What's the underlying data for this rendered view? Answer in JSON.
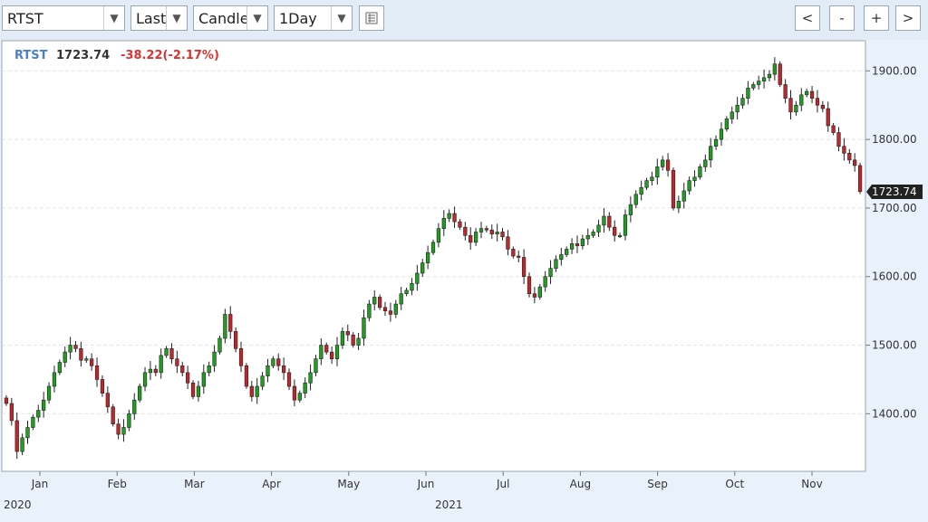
{
  "toolbar": {
    "symbol": "RTST",
    "price_type": "Last",
    "chart_style": "Candle",
    "interval": "1Day",
    "dropdown_arrow": "▼",
    "nav_prev": "<",
    "zoom_out": "-",
    "zoom_in": "+",
    "nav_next": ">"
  },
  "legend": {
    "symbol": "RTST",
    "last": "1723.74",
    "change": "-38.22(-2.17%)"
  },
  "colors": {
    "up": "#1f9e1f",
    "down": "#c0262b",
    "symbol": "#4a7fd0",
    "change": "#e03030"
  },
  "chart_data": {
    "type": "candlestick",
    "ylim": [
      1320,
      1940
    ],
    "y_ticks": [
      1400,
      1500,
      1600,
      1700,
      1800,
      1900
    ],
    "y_tick_labels": [
      "1400.00",
      "1500.00",
      "1600.00",
      "1700.00",
      "1800.00",
      "1900.00"
    ],
    "last_price_label": "1723.74",
    "last_price": 1723.74,
    "months": [
      "Jan",
      "Feb",
      "Mar",
      "Apr",
      "May",
      "Jun",
      "Jul",
      "Aug",
      "Sep",
      "Oct",
      "Nov"
    ],
    "years": [
      "2020",
      "2021"
    ],
    "grid": true,
    "closes": [
      1415,
      1390,
      1345,
      1365,
      1380,
      1395,
      1405,
      1420,
      1440,
      1460,
      1475,
      1490,
      1500,
      1495,
      1478,
      1480,
      1470,
      1450,
      1430,
      1410,
      1385,
      1370,
      1380,
      1400,
      1420,
      1440,
      1460,
      1465,
      1460,
      1485,
      1495,
      1480,
      1470,
      1460,
      1445,
      1425,
      1440,
      1460,
      1470,
      1490,
      1510,
      1545,
      1520,
      1495,
      1470,
      1440,
      1425,
      1440,
      1455,
      1470,
      1480,
      1470,
      1460,
      1440,
      1420,
      1430,
      1445,
      1460,
      1480,
      1500,
      1490,
      1480,
      1500,
      1520,
      1515,
      1500,
      1510,
      1540,
      1560,
      1570,
      1555,
      1550,
      1545,
      1560,
      1575,
      1580,
      1590,
      1605,
      1620,
      1635,
      1650,
      1670,
      1685,
      1692,
      1680,
      1672,
      1660,
      1650,
      1665,
      1670,
      1668,
      1662,
      1665,
      1658,
      1640,
      1630,
      1628,
      1600,
      1575,
      1570,
      1585,
      1600,
      1612,
      1625,
      1632,
      1640,
      1648,
      1645,
      1655,
      1660,
      1665,
      1675,
      1688,
      1672,
      1660,
      1660,
      1690,
      1705,
      1720,
      1730,
      1740,
      1745,
      1760,
      1770,
      1755,
      1700,
      1710,
      1725,
      1740,
      1745,
      1760,
      1770,
      1790,
      1800,
      1815,
      1830,
      1840,
      1850,
      1860,
      1875,
      1880,
      1885,
      1890,
      1895,
      1910,
      1880,
      1860,
      1840,
      1850,
      1865,
      1870,
      1860,
      1850,
      1845,
      1820,
      1810,
      1790,
      1780,
      1770,
      1762,
      1724
    ]
  }
}
